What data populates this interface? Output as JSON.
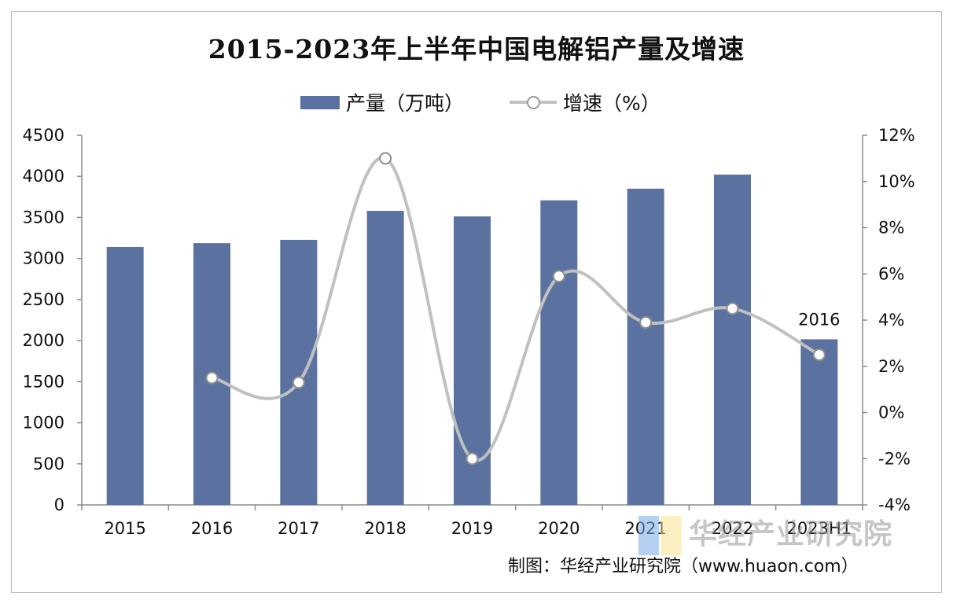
{
  "chart_data": {
    "type": "bar",
    "title": "2015-2023年上半年中国电解铝产量及增速",
    "categories": [
      "2015",
      "2016",
      "2017",
      "2018",
      "2019",
      "2020",
      "2021",
      "2022",
      "2023H1"
    ],
    "series": [
      {
        "name": "产量（万吨）",
        "type": "bar",
        "axis": "left",
        "color": "#5b72a0",
        "values": [
          3141,
          3187,
          3227,
          3580,
          3512,
          3708,
          3850,
          4021,
          2016
        ]
      },
      {
        "name": "增速（%）",
        "type": "line",
        "axis": "right",
        "color": "#c0c0c0",
        "smooth": true,
        "values": [
          null,
          1.5,
          1.3,
          11.0,
          -2.0,
          5.9,
          3.9,
          4.5,
          2.5
        ]
      }
    ],
    "data_labels": [
      {
        "category": "2023H1",
        "series": "产量（万吨）",
        "text": "2016"
      }
    ],
    "y_left": {
      "lim": [
        0,
        4500
      ],
      "ticks": [
        "0",
        "500",
        "1000",
        "1500",
        "2000",
        "2500",
        "3000",
        "3500",
        "4000",
        "4500"
      ]
    },
    "y_right": {
      "lim": [
        -4,
        12
      ],
      "ticks": [
        "-4%",
        "-2%",
        "0%",
        "2%",
        "4%",
        "6%",
        "8%",
        "10%",
        "12%"
      ]
    },
    "grid": false,
    "legend_position": "top-center"
  },
  "legend": {
    "bar_label": "产量（万吨）",
    "line_label": "增速（%）"
  },
  "source_text": "制图：华经产业研究院（www.huaon.com）",
  "watermark_text": "华经产业研究院"
}
